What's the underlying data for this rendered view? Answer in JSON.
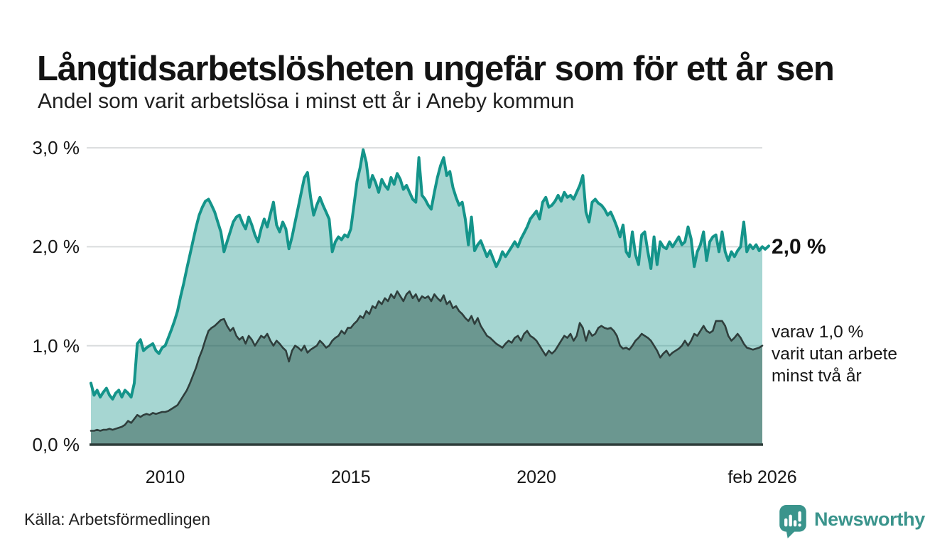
{
  "header": {
    "title": "Långtidsarbetslösheten ungefär som för ett år sen",
    "subtitle": "Andel som varit arbetslösa i minst ett år i Aneby kommun"
  },
  "annotations": {
    "latest_total": "2,0 %",
    "secondary": [
      "varav 1,0 %",
      "varit utan arbete",
      "minst två år"
    ]
  },
  "footer": {
    "source": "Källa: Arbetsförmedlingen",
    "brand": "Newsworthy",
    "brand_icon": "bar-chart-speech-bubble-icon"
  },
  "colors": {
    "line_total": "#14948a",
    "fill_total": "rgba(20,148,138,0.38)",
    "line_two_years": "#2f3e3c",
    "fill_two_years": "rgba(35,76,65,0.45)",
    "gridline": "#d9dcdd",
    "axis": "#2e3d3a",
    "brand_teal": "#3a948c",
    "text": "#161616"
  },
  "chart_data": {
    "type": "area",
    "title": "Långtidsarbetslösheten ungefär som för ett år sen",
    "subtitle": "Andel som varit arbetslösa i minst ett år i Aneby kommun",
    "unit": "%",
    "x_start": "2008-01",
    "x_end": "2026-02",
    "frequency": "monthly",
    "ylim": [
      0,
      3.13
    ],
    "grid": true,
    "legend_position": "right-annotations",
    "y_ticks": [
      {
        "label": "0,0 %",
        "value": 0
      },
      {
        "label": "1,0 %",
        "value": 1
      },
      {
        "label": "2,0 %",
        "value": 2
      },
      {
        "label": "3,0 %",
        "value": 3
      }
    ],
    "x_ticks": [
      {
        "label": "2010",
        "month_index": 24
      },
      {
        "label": "2015",
        "month_index": 84
      },
      {
        "label": "2020",
        "month_index": 144
      },
      {
        "label": "feb 2026",
        "month_index": 217
      }
    ],
    "latest": {
      "total": 2.0,
      "two_years": 1.0,
      "date": "feb 2026"
    },
    "series": [
      {
        "name": "Arbetslösa minst ett år",
        "color": "#14948a",
        "values": [
          0.62,
          0.5,
          0.55,
          0.48,
          0.53,
          0.57,
          0.5,
          0.46,
          0.52,
          0.55,
          0.48,
          0.55,
          0.52,
          0.48,
          0.62,
          1.02,
          1.06,
          0.95,
          0.98,
          1.0,
          1.02,
          0.95,
          0.92,
          0.98,
          1.0,
          1.08,
          1.16,
          1.25,
          1.35,
          1.5,
          1.63,
          1.78,
          1.92,
          2.06,
          2.2,
          2.32,
          2.4,
          2.46,
          2.48,
          2.42,
          2.35,
          2.25,
          2.15,
          1.95,
          2.05,
          2.15,
          2.25,
          2.3,
          2.32,
          2.24,
          2.18,
          2.3,
          2.22,
          2.12,
          2.05,
          2.18,
          2.28,
          2.2,
          2.33,
          2.45,
          2.22,
          2.15,
          2.25,
          2.18,
          1.98,
          2.1,
          2.25,
          2.4,
          2.55,
          2.7,
          2.75,
          2.5,
          2.32,
          2.42,
          2.5,
          2.42,
          2.35,
          2.28,
          1.95,
          2.05,
          2.1,
          2.07,
          2.12,
          2.1,
          2.18,
          2.42,
          2.66,
          2.8,
          2.98,
          2.85,
          2.6,
          2.72,
          2.65,
          2.55,
          2.68,
          2.62,
          2.58,
          2.7,
          2.63,
          2.74,
          2.68,
          2.58,
          2.62,
          2.55,
          2.48,
          2.45,
          2.9,
          2.52,
          2.48,
          2.42,
          2.38,
          2.55,
          2.7,
          2.82,
          2.9,
          2.72,
          2.76,
          2.6,
          2.5,
          2.42,
          2.45,
          2.28,
          2.02,
          2.3,
          1.96,
          2.02,
          2.06,
          1.98,
          1.9,
          1.96,
          1.88,
          1.8,
          1.86,
          1.95,
          1.9,
          1.95,
          2.0,
          2.05,
          2.0,
          2.08,
          2.14,
          2.2,
          2.28,
          2.32,
          2.36,
          2.28,
          2.45,
          2.5,
          2.4,
          2.42,
          2.46,
          2.52,
          2.46,
          2.55,
          2.5,
          2.52,
          2.48,
          2.55,
          2.62,
          2.72,
          2.35,
          2.25,
          2.45,
          2.48,
          2.44,
          2.42,
          2.38,
          2.32,
          2.35,
          2.28,
          2.2,
          2.1,
          2.22,
          1.95,
          1.9,
          2.15,
          1.92,
          1.82,
          2.12,
          2.15,
          1.95,
          1.78,
          2.1,
          1.82,
          2.05,
          2.0,
          1.98,
          2.05,
          2.0,
          2.05,
          2.1,
          2.02,
          2.05,
          2.2,
          2.08,
          1.8,
          1.95,
          2.02,
          2.15,
          1.86,
          2.05,
          2.1,
          2.12,
          1.95,
          2.15,
          1.95,
          1.86,
          1.95,
          1.9,
          1.96,
          2.0,
          2.25,
          1.95,
          2.02,
          1.98,
          2.02,
          1.96,
          2.0
        ]
      },
      {
        "name": "varav arbetslösa minst två år",
        "color": "#2f3e3c",
        "values": [
          0.14,
          0.14,
          0.15,
          0.14,
          0.15,
          0.15,
          0.16,
          0.15,
          0.16,
          0.17,
          0.18,
          0.2,
          0.24,
          0.22,
          0.26,
          0.3,
          0.28,
          0.3,
          0.31,
          0.3,
          0.32,
          0.31,
          0.32,
          0.33,
          0.33,
          0.34,
          0.36,
          0.38,
          0.4,
          0.45,
          0.5,
          0.55,
          0.62,
          0.7,
          0.78,
          0.88,
          0.96,
          1.06,
          1.15,
          1.18,
          1.2,
          1.23,
          1.26,
          1.27,
          1.2,
          1.15,
          1.18,
          1.1,
          1.06,
          1.09,
          1.02,
          1.1,
          1.06,
          1.0,
          1.05,
          1.1,
          1.08,
          1.12,
          1.05,
          1.0,
          1.05,
          1.02,
          0.98,
          0.95,
          0.84,
          0.95,
          1.0,
          0.98,
          0.95,
          1.0,
          0.93,
          0.96,
          0.98,
          1.0,
          1.05,
          1.02,
          0.98,
          1.0,
          1.05,
          1.08,
          1.1,
          1.15,
          1.12,
          1.18,
          1.18,
          1.22,
          1.25,
          1.3,
          1.28,
          1.35,
          1.32,
          1.4,
          1.38,
          1.45,
          1.42,
          1.48,
          1.45,
          1.52,
          1.48,
          1.55,
          1.5,
          1.45,
          1.52,
          1.55,
          1.48,
          1.52,
          1.45,
          1.5,
          1.48,
          1.5,
          1.45,
          1.52,
          1.48,
          1.45,
          1.51,
          1.42,
          1.45,
          1.38,
          1.4,
          1.35,
          1.32,
          1.28,
          1.25,
          1.3,
          1.22,
          1.28,
          1.2,
          1.15,
          1.1,
          1.08,
          1.05,
          1.02,
          1.0,
          0.98,
          1.02,
          1.05,
          1.03,
          1.08,
          1.1,
          1.05,
          1.12,
          1.15,
          1.1,
          1.08,
          1.05,
          1.0,
          0.95,
          0.9,
          0.95,
          0.92,
          0.95,
          1.0,
          1.05,
          1.1,
          1.08,
          1.12,
          1.05,
          1.1,
          1.23,
          1.18,
          1.05,
          1.15,
          1.1,
          1.12,
          1.18,
          1.2,
          1.18,
          1.17,
          1.18,
          1.15,
          1.1,
          1.0,
          0.97,
          0.98,
          0.96,
          1.0,
          1.05,
          1.08,
          1.12,
          1.1,
          1.08,
          1.05,
          1.0,
          0.95,
          0.88,
          0.92,
          0.95,
          0.9,
          0.93,
          0.95,
          0.97,
          1.0,
          1.05,
          1.0,
          1.05,
          1.12,
          1.1,
          1.15,
          1.2,
          1.15,
          1.13,
          1.15,
          1.25,
          1.25,
          1.25,
          1.2,
          1.1,
          1.05,
          1.08,
          1.12,
          1.08,
          1.02,
          0.98,
          0.97,
          0.96,
          0.97,
          0.98,
          1.0
        ]
      }
    ]
  }
}
